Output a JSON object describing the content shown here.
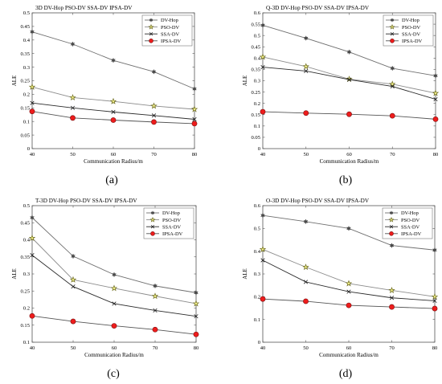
{
  "colors": {
    "dv_hop": "#6f6f6f",
    "pso_dv": "#8c8c8c",
    "pso_marker_fill": "#f1ef8a",
    "ssa_dv": "#2b2b2b",
    "ipsa_dv": "#555555",
    "ipsa_marker_fill": "#ee1c1c",
    "frame": "#555555"
  },
  "chart_data": [
    {
      "type": "line",
      "panel_label": "(a)",
      "title": "3D DV-Hop PSO-DV SSA-DV IPSA-DV",
      "xlabel": "Communication Radius/m",
      "ylabel": "ALE",
      "x": [
        40,
        50,
        60,
        70,
        80
      ],
      "xlim": [
        40,
        80
      ],
      "ylim": [
        0,
        0.5
      ],
      "yticks": [
        "0",
        "0.05",
        "0.1",
        "0.15",
        "0.2",
        "0.25",
        "0.3",
        "0.35",
        "0.4",
        "0.45",
        "0.5"
      ],
      "xticks": [
        "40",
        "50",
        "60",
        "70",
        "80"
      ],
      "legend_position": "top-right",
      "series": [
        {
          "name": "DV-Hop",
          "values": [
            0.43,
            0.385,
            0.325,
            0.283,
            0.22
          ]
        },
        {
          "name": "PSO-DV",
          "values": [
            0.227,
            0.188,
            0.174,
            0.157,
            0.145
          ]
        },
        {
          "name": "SSA-DV",
          "values": [
            0.168,
            0.15,
            0.135,
            0.122,
            0.108
          ]
        },
        {
          "name": "IPSA-DV",
          "values": [
            0.137,
            0.113,
            0.105,
            0.098,
            0.092
          ]
        }
      ]
    },
    {
      "type": "line",
      "panel_label": "(b)",
      "title": "Q-3D DV-Hop PSO-DV SSA-DV IPSA-DV",
      "xlabel": "Communication Radius/m",
      "ylabel": "ALE",
      "x": [
        40,
        50,
        60,
        70,
        80
      ],
      "xlim": [
        40,
        80
      ],
      "ylim": [
        0,
        0.6
      ],
      "yticks": [
        "0",
        "0.05",
        "0.1",
        "0.15",
        "0.2",
        "0.25",
        "0.3",
        "0.35",
        "0.4",
        "0.45",
        "0.5",
        "0.55",
        "0.6"
      ],
      "xticks": [
        "40",
        "50",
        "60",
        "70",
        "80"
      ],
      "legend_position": "top-right",
      "series": [
        {
          "name": "DV-Hop",
          "values": [
            0.545,
            0.488,
            0.427,
            0.355,
            0.322
          ]
        },
        {
          "name": "PSO-DV",
          "values": [
            0.405,
            0.363,
            0.307,
            0.285,
            0.245
          ]
        },
        {
          "name": "SSA-DV",
          "values": [
            0.36,
            0.343,
            0.305,
            0.275,
            0.218
          ]
        },
        {
          "name": "IPSA-DV",
          "values": [
            0.163,
            0.157,
            0.152,
            0.145,
            0.13
          ]
        }
      ]
    },
    {
      "type": "line",
      "panel_label": "(c)",
      "title": "T-3D DV-Hop PSO-DV SSA-DV IPSA-DV",
      "xlabel": "Communication Radius/m",
      "ylabel": "ALE",
      "x": [
        40,
        50,
        60,
        70,
        80
      ],
      "xlim": [
        40,
        80
      ],
      "ylim": [
        0.1,
        0.5
      ],
      "yticks": [
        "0.1",
        "0.15",
        "0.2",
        "0.25",
        "0.3",
        "0.35",
        "0.4",
        "0.45",
        "0.5"
      ],
      "xticks": [
        "40",
        "50",
        "60",
        "70",
        "80"
      ],
      "legend_position": "top-right",
      "series": [
        {
          "name": "DV-Hop",
          "values": [
            0.465,
            0.352,
            0.298,
            0.265,
            0.245
          ]
        },
        {
          "name": "PSO-DV",
          "values": [
            0.405,
            0.283,
            0.258,
            0.235,
            0.213
          ]
        },
        {
          "name": "SSA-DV",
          "values": [
            0.355,
            0.263,
            0.213,
            0.193,
            0.176
          ]
        },
        {
          "name": "IPSA-DV",
          "values": [
            0.177,
            0.161,
            0.148,
            0.137,
            0.123
          ]
        }
      ]
    },
    {
      "type": "line",
      "panel_label": "(d)",
      "title": "O-3D DV-Hop PSO-DV SSA-DV IPSA-DV",
      "xlabel": "Communication Radius/m",
      "ylabel": "ALE",
      "x": [
        40,
        50,
        60,
        70,
        80
      ],
      "xlim": [
        40,
        80
      ],
      "ylim": [
        0,
        0.6
      ],
      "yticks": [
        "0",
        "0.1",
        "0.2",
        "0.3",
        "0.4",
        "0.5",
        "0.6"
      ],
      "xticks": [
        "40",
        "50",
        "60",
        "70",
        "80"
      ],
      "legend_position": "top-right",
      "series": [
        {
          "name": "DV-Hop",
          "values": [
            0.557,
            0.53,
            0.5,
            0.425,
            0.405
          ]
        },
        {
          "name": "PSO-DV",
          "values": [
            0.408,
            0.33,
            0.258,
            0.228,
            0.2
          ]
        },
        {
          "name": "SSA-DV",
          "values": [
            0.36,
            0.265,
            0.222,
            0.195,
            0.182
          ]
        },
        {
          "name": "IPSA-DV",
          "values": [
            0.19,
            0.18,
            0.162,
            0.155,
            0.148
          ]
        }
      ]
    }
  ]
}
